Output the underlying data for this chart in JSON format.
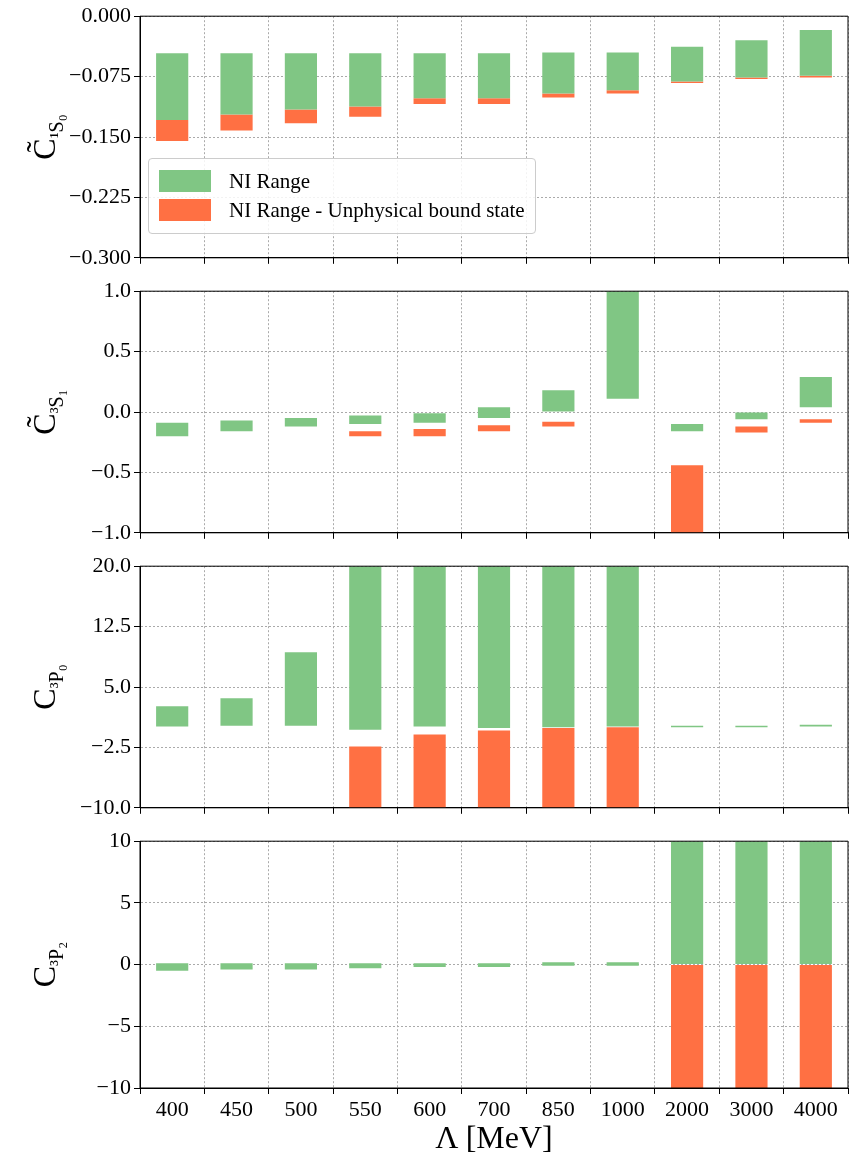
{
  "chart_data": [
    {
      "type": "bar",
      "categories": [
        "400",
        "450",
        "500",
        "550",
        "600",
        "700",
        "850",
        "1000",
        "2000",
        "3000",
        "4000"
      ],
      "ylabel": "C̃$_{¹S₀}$",
      "ylim": [
        -0.3,
        0
      ],
      "yticks": [
        {
          "value": 0,
          "label": "0.000"
        },
        {
          "value": -0.075,
          "label": "−0.075"
        },
        {
          "value": -0.15,
          "label": "−0.150"
        },
        {
          "value": -0.225,
          "label": "−0.225"
        },
        {
          "value": -0.3,
          "label": "−0.300"
        }
      ],
      "grid": true,
      "legend": "bottom left",
      "tick_labels": "y",
      "series": [
        {
          "name": "NI Range",
          "color": "#80c684",
          "base": [
            -0.129,
            -0.122,
            -0.116,
            -0.112,
            -0.102,
            -0.102,
            -0.096,
            -0.092,
            -0.081,
            -0.076,
            -0.074
          ],
          "values": [
            0.083,
            0.076,
            0.07,
            0.066,
            0.056,
            0.056,
            0.051,
            0.047,
            0.043,
            0.046,
            0.057
          ]
        },
        {
          "name": "NI Range - Unphysical bound state",
          "color": "#ff7043",
          "base": [
            -0.155,
            -0.142,
            -0.133,
            -0.125,
            -0.109,
            -0.109,
            -0.101,
            -0.096,
            -0.083,
            -0.078,
            -0.076
          ],
          "values": [
            0.026,
            0.02,
            0.017,
            0.013,
            0.007,
            0.007,
            0.005,
            0.004,
            0.002,
            0.002,
            0.002
          ]
        }
      ]
    },
    {
      "type": "bar",
      "categories": [
        "400",
        "450",
        "500",
        "550",
        "600",
        "700",
        "850",
        "1000",
        "2000",
        "3000",
        "4000"
      ],
      "ylabel": "C̃$_{³S₁}$",
      "ylim": [
        -1,
        1
      ],
      "yticks": [
        {
          "value": 1,
          "label": "1.0"
        },
        {
          "value": 0.5,
          "label": "0.5"
        },
        {
          "value": 0,
          "label": "0.0"
        },
        {
          "value": -0.5,
          "label": "−0.5"
        },
        {
          "value": -1,
          "label": "−1.0"
        }
      ],
      "grid": true,
      "tick_labels": "y",
      "series": [
        {
          "color": "#80c684",
          "base": [
            -0.2,
            -0.16,
            -0.12,
            -0.1,
            -0.09,
            -0.05,
            0,
            0.11,
            -0.16,
            -0.06,
            0.04
          ],
          "values": [
            0.11,
            0.09,
            0.07,
            0.07,
            0.08,
            0.09,
            0.18,
            0.89,
            0.06,
            0.06,
            0.25
          ]
        },
        {
          "color": "#ff7043",
          "base": [
            null,
            null,
            null,
            -0.2,
            -0.2,
            -0.16,
            -0.12,
            null,
            -1,
            -0.17,
            -0.09
          ],
          "values": [
            null,
            null,
            null,
            0.04,
            0.06,
            0.05,
            0.04,
            null,
            0.56,
            0.05,
            0.03
          ]
        }
      ]
    },
    {
      "type": "bar",
      "categories": [
        "400",
        "450",
        "500",
        "550",
        "600",
        "700",
        "850",
        "1000",
        "2000",
        "3000",
        "4000"
      ],
      "ylabel": "C$_{³P₀}$",
      "ylim": [
        -10,
        20
      ],
      "yticks": [
        {
          "value": 20,
          "label": "20.0"
        },
        {
          "value": 12.5,
          "label": "12.5"
        },
        {
          "value": 5,
          "label": "5.0"
        },
        {
          "value": -2.5,
          "label": "−2.5"
        },
        {
          "value": -10,
          "label": "−10.0"
        }
      ],
      "grid": true,
      "tick_labels": "y",
      "series": [
        {
          "color": "#80c684",
          "base": [
            0.1,
            0.2,
            0.2,
            -0.3,
            0.1,
            -0.1,
            0,
            0.1,
            0,
            0,
            0.1
          ],
          "values": [
            2.5,
            3.4,
            9.1,
            20.3,
            19.9,
            20.1,
            20,
            19.9,
            0.2,
            0.2,
            0.2
          ]
        },
        {
          "color": "#ff7043",
          "base": [
            null,
            null,
            null,
            -10,
            -10,
            -10,
            -10,
            -10,
            null,
            null,
            null
          ],
          "values": [
            null,
            null,
            null,
            7.6,
            9.1,
            9.6,
            9.9,
            10,
            null,
            null,
            null
          ]
        }
      ]
    },
    {
      "type": "bar",
      "categories": [
        "400",
        "450",
        "500",
        "550",
        "600",
        "700",
        "850",
        "1000",
        "2000",
        "3000",
        "4000"
      ],
      "ylabel": "C$_{³P₂}$",
      "xlabel": "Λ [MeV]",
      "ylim": [
        -10,
        10
      ],
      "yticks": [
        10,
        5,
        0,
        -5,
        -10
      ],
      "grid": true,
      "series": [
        {
          "color": "#80c684",
          "base": [
            -0.5,
            -0.4,
            -0.4,
            -0.3,
            -0.2,
            -0.2,
            -0.1,
            -0.1,
            0,
            0,
            0
          ],
          "values": [
            0.6,
            0.5,
            0.5,
            0.4,
            0.3,
            0.3,
            0.3,
            0.3,
            10,
            10,
            10
          ]
        },
        {
          "color": "#ff7043",
          "base": [
            null,
            null,
            null,
            null,
            null,
            null,
            null,
            null,
            -10,
            -10,
            -10
          ],
          "values": [
            null,
            null,
            null,
            null,
            null,
            null,
            null,
            null,
            10,
            10,
            10
          ]
        }
      ]
    }
  ]
}
